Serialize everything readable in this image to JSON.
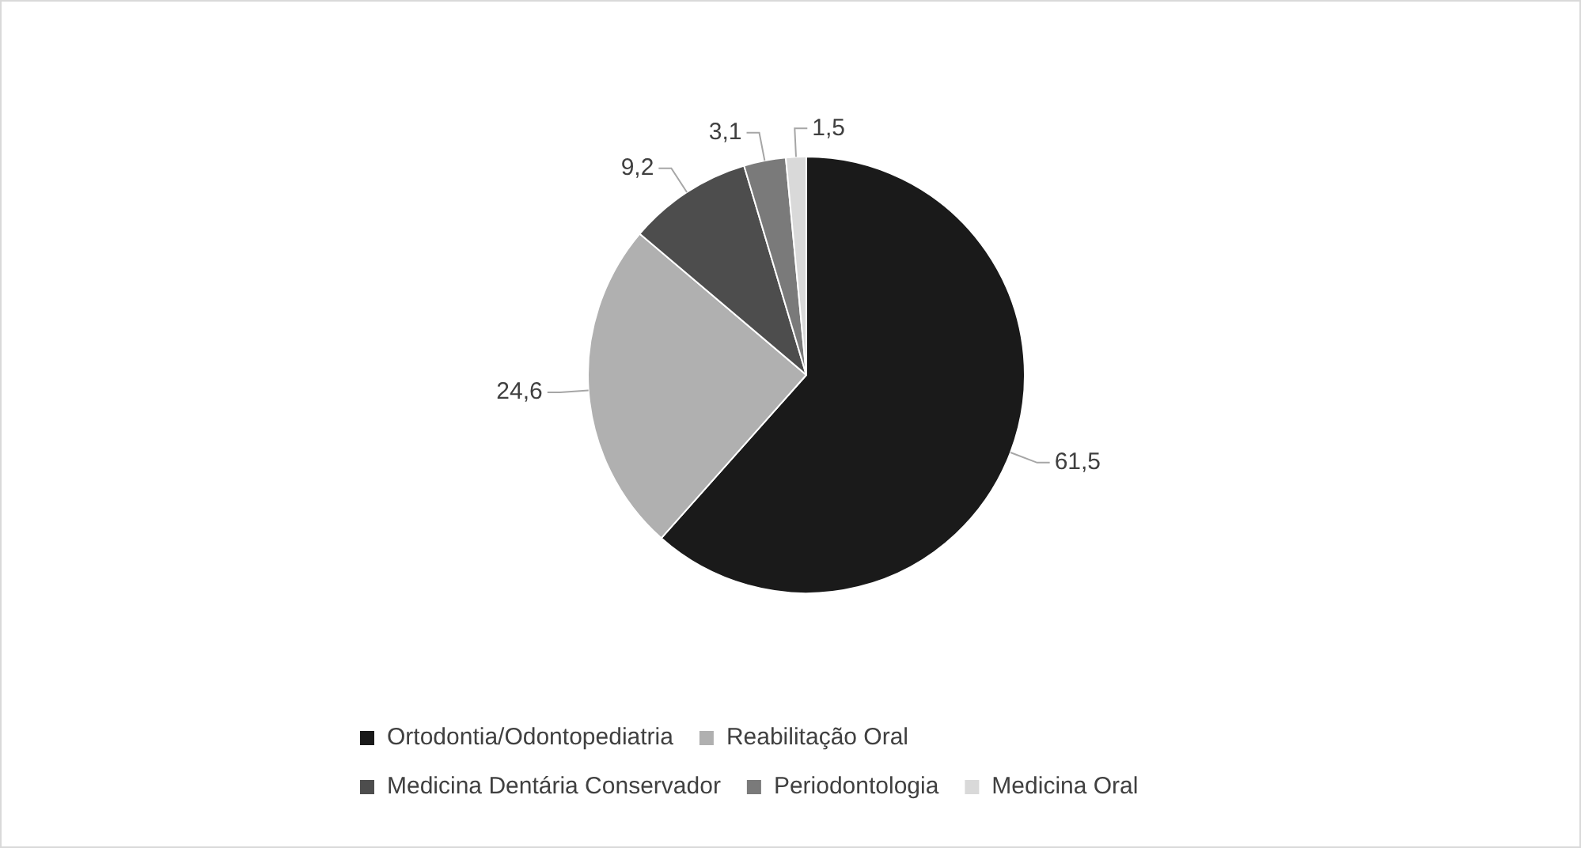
{
  "chart_data": {
    "type": "pie",
    "categories": [
      "Ortodontia/Odontopediatria",
      "Reabilitação Oral",
      "Medicina Dentária Conservador",
      "Periodontologia",
      "Medicina Oral"
    ],
    "values": [
      61.5,
      24.6,
      9.2,
      3.1,
      1.5
    ],
    "value_labels": [
      "61,5",
      "24,6",
      "9,2",
      "3,1",
      "1,5"
    ],
    "colors": [
      "#1a1a1a",
      "#b0b0b0",
      "#4d4d4d",
      "#7a7a7a",
      "#d9d9d9"
    ],
    "legend": "bottom"
  }
}
